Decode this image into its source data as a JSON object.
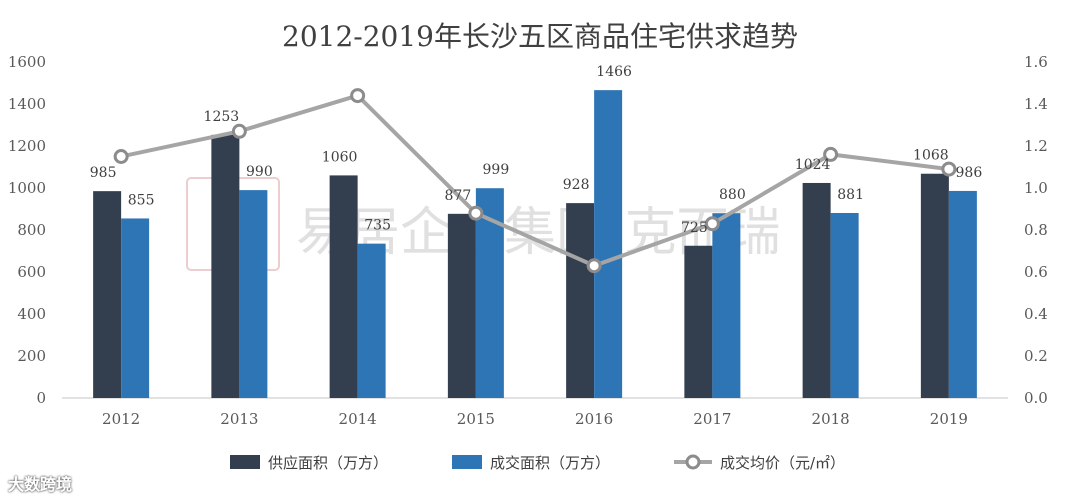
{
  "chart_data": {
    "type": "bar",
    "title": "2012-2019年长沙五区商品住宅供求趋势",
    "categories": [
      "2012",
      "2013",
      "2014",
      "2015",
      "2016",
      "2017",
      "2018",
      "2019"
    ],
    "series": [
      {
        "name": "供应面积（万方）",
        "type": "bar",
        "axis": "left",
        "color": "#333f4f",
        "values": [
          985,
          1253,
          1060,
          877,
          928,
          725,
          1024,
          1068
        ]
      },
      {
        "name": "成交面积（万方）",
        "type": "bar",
        "axis": "left",
        "color": "#2e75b6",
        "values": [
          855,
          990,
          735,
          999,
          1466,
          880,
          881,
          986
        ]
      },
      {
        "name": "成交均价（元/㎡）",
        "type": "line",
        "axis": "right",
        "color": "#a5a5a5",
        "values": [
          1.15,
          1.27,
          1.44,
          0.88,
          0.63,
          0.83,
          1.16,
          1.09
        ]
      }
    ],
    "y_left": {
      "ylim": [
        0,
        1600
      ],
      "ticks": [
        "0",
        "200",
        "400",
        "600",
        "800",
        "1000",
        "1200",
        "1400",
        "1600"
      ]
    },
    "y_right": {
      "ylim": [
        0,
        1.6
      ],
      "ticks": [
        "0.0",
        "0.2",
        "0.4",
        "0.6",
        "0.8",
        "1.0",
        "1.2",
        "1.4",
        "1.6"
      ]
    },
    "grid": false,
    "legend_position": "bottom"
  },
  "watermark": {
    "logo_char": "易居",
    "text": "易居企业集团·克而瑞"
  },
  "corner_logo": "大数跨境"
}
